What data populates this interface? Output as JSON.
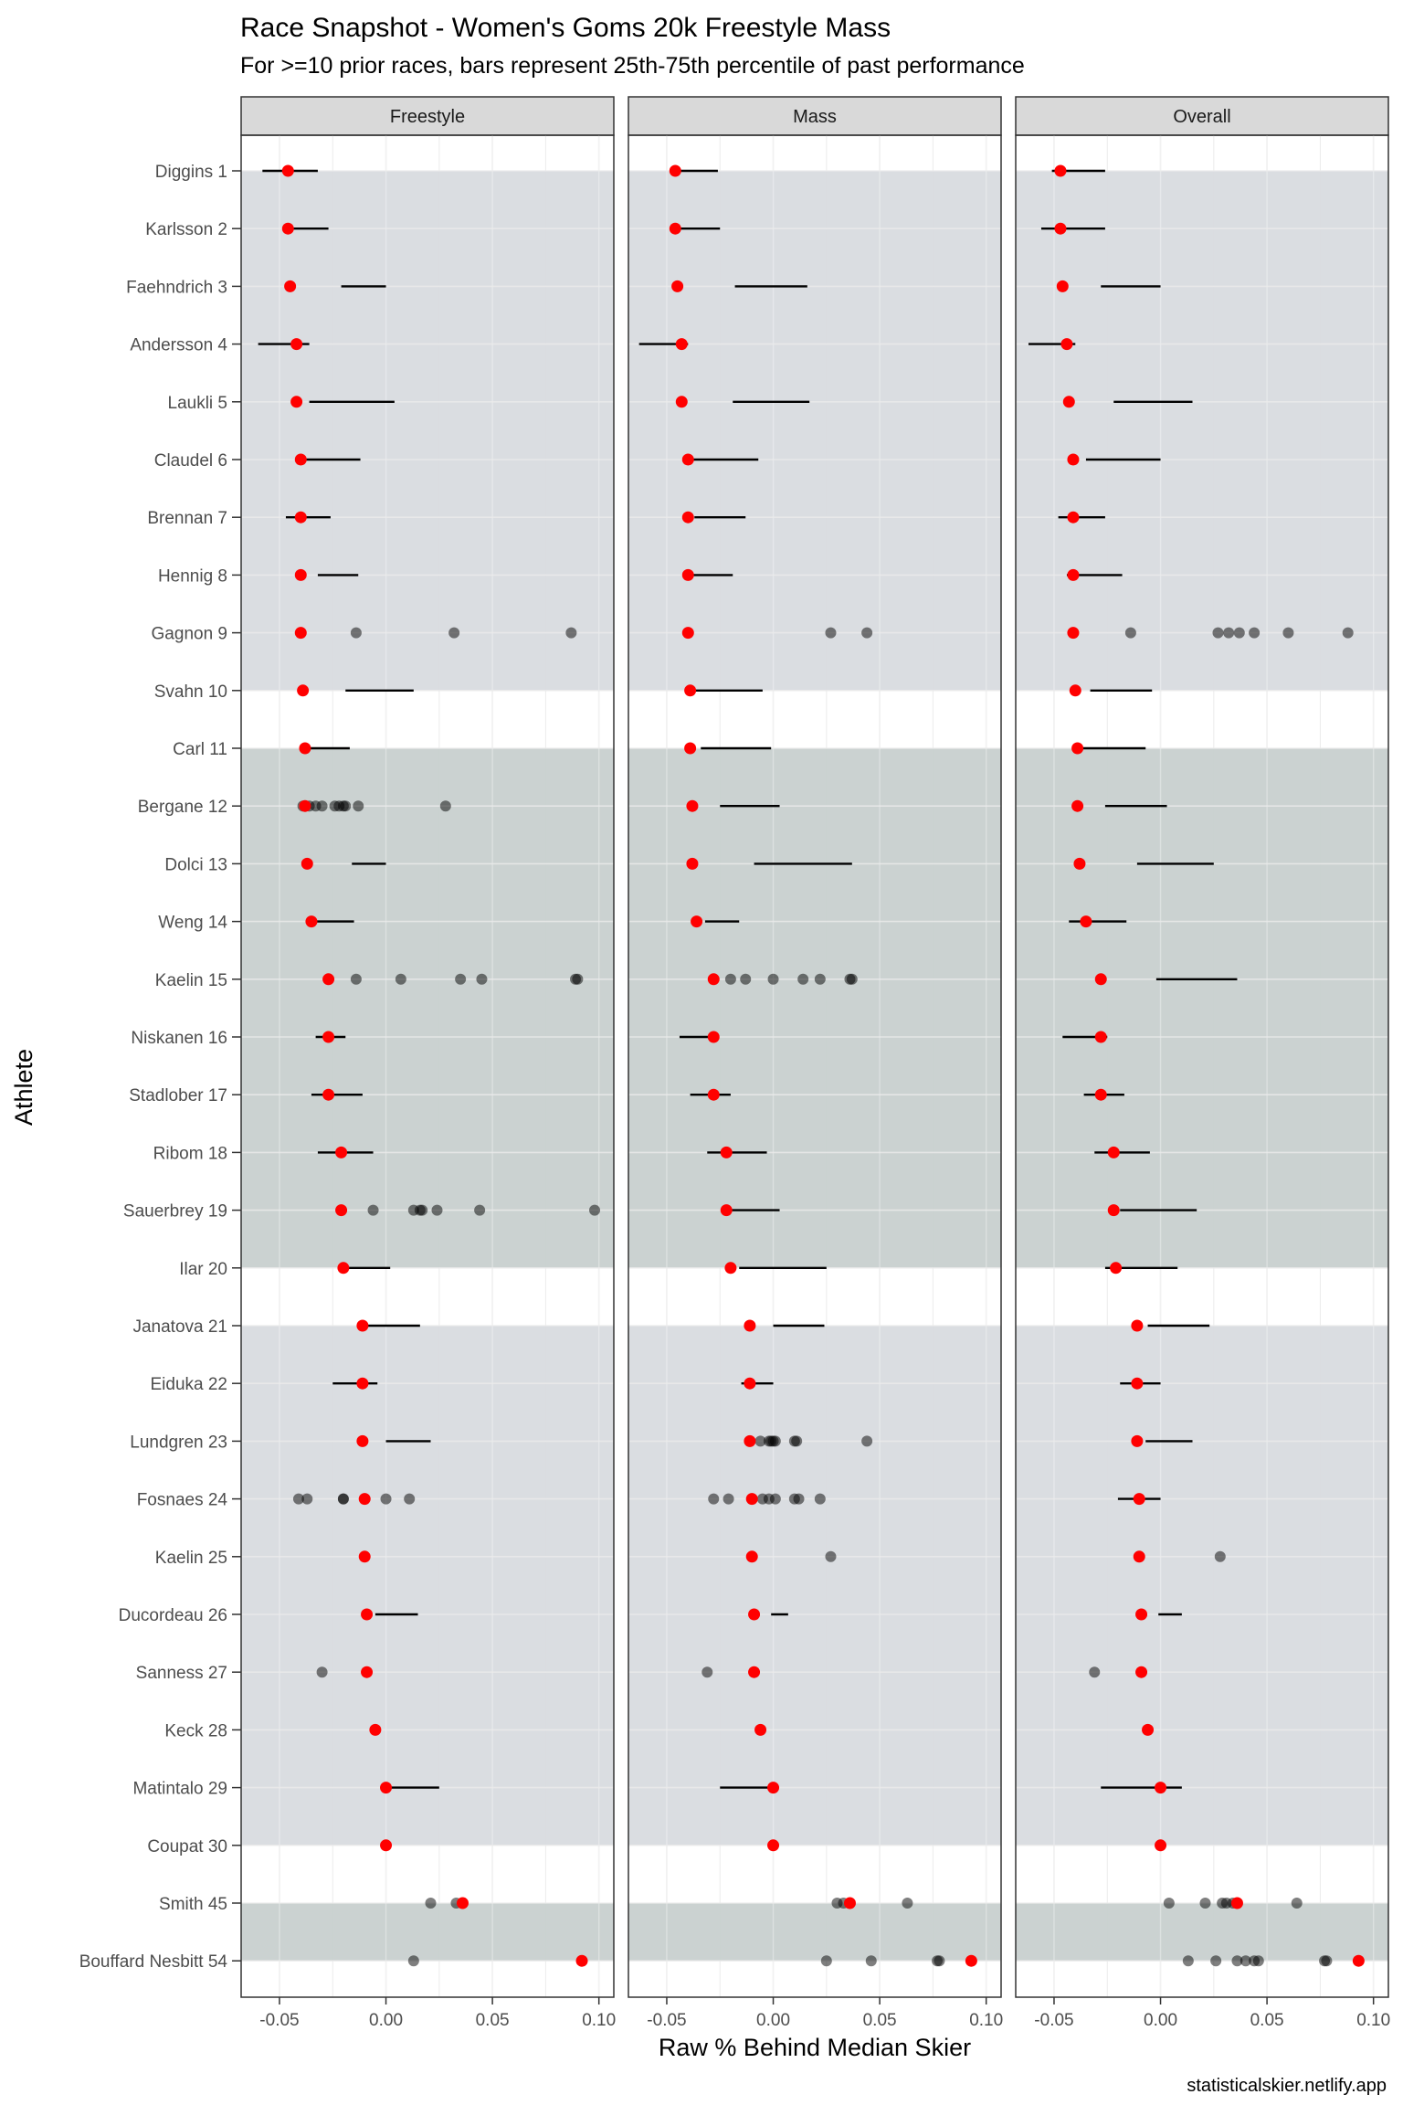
{
  "chart_data": {
    "type": "scatter",
    "title": "Race Snapshot -  Women's Goms 20k Freestyle Mass",
    "subtitle": "For >=10 prior races, bars represent 25th-75th percentile of past performance",
    "xlabel": "Raw % Behind Median Skier",
    "ylabel": "Athlete",
    "caption": "statisticalskier.netlify.app",
    "xlim": [
      -0.068,
      0.107
    ],
    "x_ticks": [
      -0.05,
      0.0,
      0.05,
      0.1
    ],
    "x_tick_labels": [
      "-0.05",
      "0.00",
      "0.05",
      "0.10"
    ],
    "grid": true,
    "colors": {
      "race_point": "#ff0000",
      "past_point": "#000000",
      "band_a": "#d8dbdf",
      "band_b": "#c8d0cf",
      "strip": "#d9d9d9"
    },
    "panels": [
      "Freestyle",
      "Mass",
      "Overall"
    ],
    "athletes": [
      "Diggins 1",
      "Karlsson 2",
      "Faehndrich 3",
      "Andersson 4",
      "Laukli 5",
      "Claudel 6",
      "Brennan 7",
      "Hennig 8",
      "Gagnon 9",
      "Svahn 10",
      "Carl 11",
      "Bergane 12",
      "Dolci 13",
      "Weng 14",
      "Kaelin 15",
      "Niskanen 16",
      "Stadlober 17",
      "Ribom 18",
      "Sauerbrey 19",
      "Ilar 20",
      "Janatova 21",
      "Eiduka 22",
      "Lundgren 23",
      "Fosnaes 24",
      "Kaelin 25",
      "Ducordeau 26",
      "Sanness 27",
      "Keck 28",
      "Matintalo 29",
      "Coupat 30",
      "Smith 45",
      "Bouffard Nesbitt 54"
    ],
    "bands": [
      {
        "from": 0,
        "to": 9,
        "color": "band_a"
      },
      {
        "from": 10,
        "to": 19,
        "color": "band_b"
      },
      {
        "from": 20,
        "to": 29,
        "color": "band_a"
      },
      {
        "from": 30,
        "to": 31,
        "color": "band_b"
      }
    ],
    "series": [
      {
        "name": "Freestyle",
        "race": [
          -0.046,
          -0.046,
          -0.045,
          -0.042,
          -0.042,
          -0.04,
          -0.04,
          -0.04,
          -0.04,
          -0.039,
          -0.038,
          -0.038,
          -0.037,
          -0.035,
          -0.027,
          -0.027,
          -0.027,
          -0.021,
          -0.021,
          -0.02,
          -0.011,
          -0.011,
          -0.011,
          -0.01,
          -0.01,
          -0.009,
          -0.009,
          -0.005,
          0.0,
          0.0,
          0.036,
          0.092
        ],
        "iqr": [
          [
            -0.058,
            -0.032
          ],
          [
            -0.045,
            -0.027
          ],
          [
            -0.021,
            0.0
          ],
          [
            -0.06,
            -0.036
          ],
          [
            -0.036,
            0.004
          ],
          [
            -0.042,
            -0.012
          ],
          [
            -0.047,
            -0.026
          ],
          [
            -0.032,
            -0.013
          ],
          null,
          [
            -0.019,
            0.013
          ],
          [
            -0.039,
            -0.017
          ],
          null,
          [
            -0.016,
            0.0
          ],
          [
            -0.033,
            -0.015
          ],
          null,
          [
            -0.033,
            -0.019
          ],
          [
            -0.035,
            -0.011
          ],
          [
            -0.032,
            -0.006
          ],
          null,
          [
            -0.019,
            0.002
          ],
          [
            -0.009,
            0.016
          ],
          [
            -0.025,
            -0.004
          ],
          [
            0.0,
            0.021
          ],
          null,
          null,
          [
            -0.005,
            0.015
          ],
          null,
          null,
          [
            0.0,
            0.025
          ],
          null,
          null,
          null
        ],
        "past": [
          [],
          [],
          [],
          [],
          [],
          [],
          [],
          [],
          [
            -0.014,
            0.032,
            0.087
          ],
          [],
          [],
          [
            -0.039,
            -0.038,
            -0.036,
            -0.033,
            -0.03,
            -0.024,
            -0.022,
            -0.02,
            -0.019,
            -0.013,
            0.028
          ],
          [],
          [],
          [
            -0.014,
            0.007,
            0.035,
            0.045,
            0.089,
            0.09
          ],
          [],
          [],
          [],
          [
            -0.006,
            0.013,
            0.016,
            0.017,
            0.024,
            0.044,
            0.098
          ],
          [],
          [],
          [],
          [],
          [
            -0.041,
            -0.037,
            -0.02,
            -0.02,
            0.0,
            0.011
          ],
          [],
          [],
          [
            -0.03
          ],
          [],
          [],
          [],
          [
            0.021,
            0.033
          ],
          [
            0.013
          ]
        ]
      },
      {
        "name": "Mass",
        "race": [
          -0.046,
          -0.046,
          -0.045,
          -0.043,
          -0.043,
          -0.04,
          -0.04,
          -0.04,
          -0.04,
          -0.039,
          -0.039,
          -0.038,
          -0.038,
          -0.036,
          -0.028,
          -0.028,
          -0.028,
          -0.022,
          -0.022,
          -0.02,
          -0.011,
          -0.011,
          -0.011,
          -0.01,
          -0.01,
          -0.009,
          -0.009,
          -0.006,
          0.0,
          0.0,
          0.036,
          0.093
        ],
        "iqr": [
          [
            -0.045,
            -0.026
          ],
          [
            -0.045,
            -0.025
          ],
          [
            -0.018,
            0.016
          ],
          [
            -0.063,
            -0.04
          ],
          [
            -0.019,
            0.017
          ],
          [
            -0.04,
            -0.007
          ],
          [
            -0.037,
            -0.013
          ],
          [
            -0.04,
            -0.019
          ],
          null,
          [
            -0.038,
            -0.005
          ],
          [
            -0.034,
            -0.001
          ],
          [
            -0.025,
            0.003
          ],
          [
            -0.009,
            0.037
          ],
          [
            -0.032,
            -0.016
          ],
          null,
          [
            -0.044,
            -0.026
          ],
          [
            -0.039,
            -0.02
          ],
          [
            -0.031,
            -0.003
          ],
          [
            -0.021,
            0.003
          ],
          [
            -0.016,
            0.025
          ],
          [
            0.0,
            0.024
          ],
          [
            -0.015,
            0.0
          ],
          null,
          null,
          null,
          [
            -0.001,
            0.007
          ],
          null,
          null,
          [
            -0.025,
            0.001
          ],
          null,
          null,
          null
        ],
        "past": [
          [],
          [],
          [],
          [],
          [],
          [],
          [],
          [],
          [
            0.027,
            0.044
          ],
          [],
          [],
          [],
          [],
          [],
          [
            -0.02,
            -0.013,
            0.0,
            0.014,
            0.022,
            0.036,
            0.037
          ],
          [],
          [],
          [],
          [],
          [],
          [],
          [],
          [
            -0.011,
            -0.006,
            -0.002,
            -0.001,
            0.0,
            0.001,
            0.01,
            0.011,
            0.044
          ],
          [
            -0.028,
            -0.021,
            -0.005,
            -0.002,
            0.001,
            0.01,
            0.012,
            0.022
          ],
          [
            0.027
          ],
          [],
          [
            -0.031
          ],
          [],
          [],
          [],
          [
            0.03,
            0.033,
            0.063
          ],
          [
            0.025,
            0.046,
            0.077,
            0.078
          ]
        ]
      },
      {
        "name": "Overall",
        "race": [
          -0.047,
          -0.047,
          -0.046,
          -0.044,
          -0.043,
          -0.041,
          -0.041,
          -0.041,
          -0.041,
          -0.04,
          -0.039,
          -0.039,
          -0.038,
          -0.035,
          -0.028,
          -0.028,
          -0.028,
          -0.022,
          -0.022,
          -0.021,
          -0.011,
          -0.011,
          -0.011,
          -0.01,
          -0.01,
          -0.009,
          -0.009,
          -0.006,
          0.0,
          0.0,
          0.036,
          0.093
        ],
        "iqr": [
          [
            -0.051,
            -0.026
          ],
          [
            -0.056,
            -0.026
          ],
          [
            -0.028,
            0.0
          ],
          [
            -0.062,
            -0.04
          ],
          [
            -0.022,
            0.015
          ],
          [
            -0.035,
            0.0
          ],
          [
            -0.048,
            -0.026
          ],
          [
            -0.044,
            -0.018
          ],
          null,
          [
            -0.033,
            -0.004
          ],
          [
            -0.039,
            -0.007
          ],
          [
            -0.026,
            0.003
          ],
          [
            -0.011,
            0.025
          ],
          [
            -0.043,
            -0.016
          ],
          [
            -0.002,
            0.036
          ],
          [
            -0.046,
            -0.025
          ],
          [
            -0.036,
            -0.017
          ],
          [
            -0.031,
            -0.005
          ],
          [
            -0.019,
            0.017
          ],
          [
            -0.026,
            0.008
          ],
          [
            -0.006,
            0.023
          ],
          [
            -0.019,
            0.0
          ],
          [
            -0.007,
            0.015
          ],
          [
            -0.02,
            0.0
          ],
          null,
          [
            -0.001,
            0.01
          ],
          null,
          null,
          [
            -0.028,
            0.01
          ],
          null,
          null,
          null
        ],
        "past": [
          [],
          [],
          [],
          [],
          [],
          [],
          [],
          [],
          [
            -0.014,
            0.027,
            0.032,
            0.037,
            0.044,
            0.06,
            0.088
          ],
          [],
          [],
          [],
          [],
          [],
          [],
          [],
          [],
          [],
          [],
          [],
          [],
          [],
          [],
          [],
          [
            0.028
          ],
          [],
          [
            -0.031
          ],
          [],
          [],
          [],
          [
            0.004,
            0.021,
            0.029,
            0.031,
            0.034,
            0.064
          ],
          [
            0.013,
            0.026,
            0.036,
            0.04,
            0.044,
            0.046,
            0.077,
            0.078
          ]
        ]
      }
    ]
  }
}
